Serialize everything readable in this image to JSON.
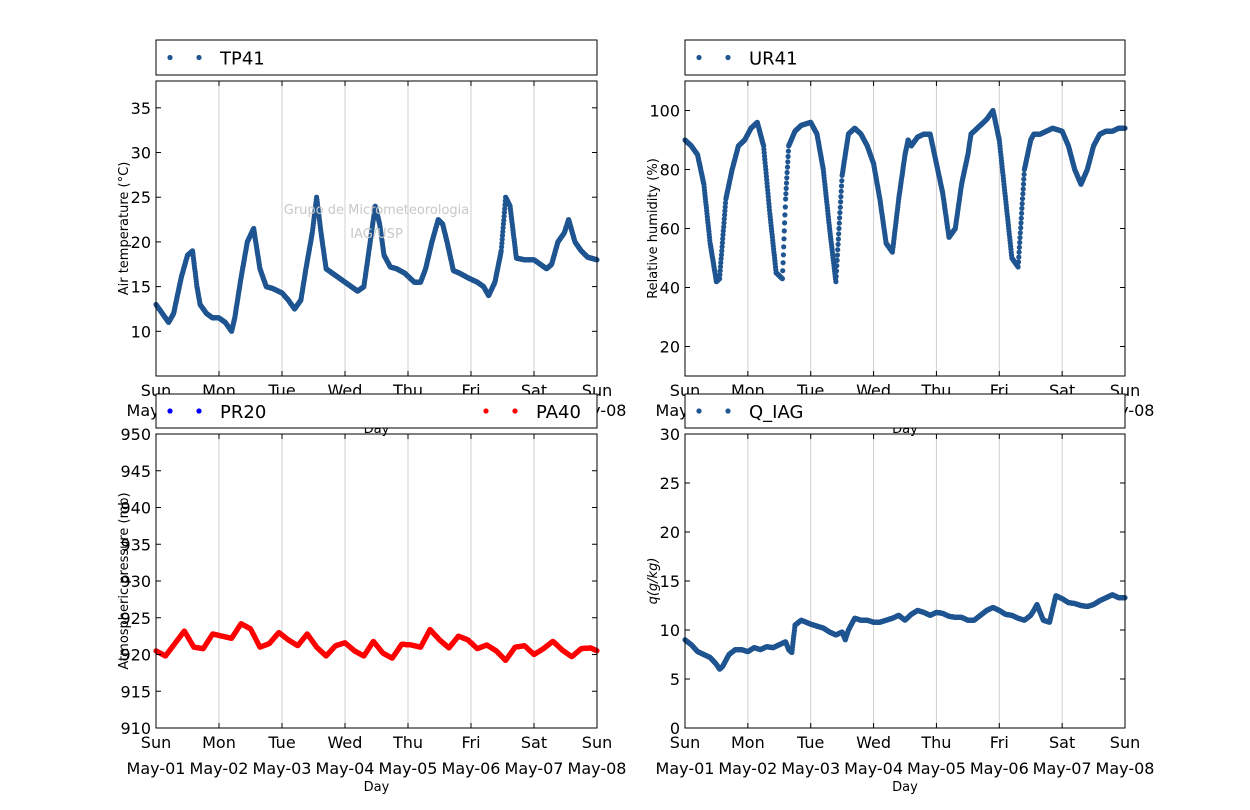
{
  "chart_data": [
    {
      "type": "scatter",
      "ylabel": "Air temperature (°C)",
      "xlabel": "Day",
      "ylim": [
        5,
        38
      ],
      "yticks": [
        10,
        15,
        20,
        25,
        30,
        35
      ],
      "xlim": [
        0,
        7
      ],
      "grid": "vertical",
      "legend_placement": "above",
      "watermark": [
        "Grupo de Micrometeorologia",
        "IAG/USP"
      ],
      "series": [
        {
          "name": "TP41",
          "color": "#1f5591",
          "x": [
            0,
            0.1,
            0.2,
            0.28,
            0.4,
            0.5,
            0.58,
            0.65,
            0.7,
            0.8,
            0.9,
            1.0,
            1.1,
            1.2,
            1.25,
            1.35,
            1.45,
            1.55,
            1.65,
            1.75,
            1.85,
            2.0,
            2.1,
            2.2,
            2.3,
            2.38,
            2.48,
            2.55,
            2.62,
            2.7,
            2.8,
            2.9,
            3.0,
            3.1,
            3.2,
            3.3,
            3.38,
            3.48,
            3.55,
            3.62,
            3.72,
            3.82,
            3.95,
            4.1,
            4.2,
            4.28,
            4.38,
            4.48,
            4.55,
            4.62,
            4.72,
            4.82,
            4.95,
            5.1,
            5.2,
            5.28,
            5.38,
            5.48,
            5.55,
            5.62,
            5.72,
            5.85,
            6.0,
            6.1,
            6.2,
            6.28,
            6.38,
            6.48,
            6.55,
            6.65,
            6.75,
            6.85,
            7.0
          ],
          "values": [
            13,
            12,
            11,
            12,
            16,
            18.5,
            19,
            15,
            13,
            12,
            11.5,
            11.5,
            11,
            10,
            11.5,
            16,
            20,
            21.5,
            17,
            15,
            14.8,
            14.3,
            13.5,
            12.5,
            13.5,
            17,
            21,
            25,
            21,
            17,
            16.5,
            16,
            15.5,
            15,
            14.5,
            15,
            19,
            24,
            22,
            18.5,
            17.2,
            17,
            16.5,
            15.5,
            15.5,
            17,
            20,
            22.5,
            22,
            20,
            16.8,
            16.5,
            16,
            15.5,
            15,
            14,
            15.5,
            19,
            25,
            24,
            18.2,
            18,
            18,
            17.5,
            17,
            17.5,
            20,
            21,
            22.5,
            20,
            19,
            18.3,
            18
          ]
        }
      ]
    },
    {
      "type": "scatter",
      "ylabel": "Relative humidity (%)",
      "xlabel": "Day",
      "ylim": [
        10,
        110
      ],
      "yticks": [
        20,
        40,
        60,
        80,
        100
      ],
      "xlim": [
        0,
        7
      ],
      "grid": "vertical",
      "legend_placement": "above",
      "series": [
        {
          "name": "UR41",
          "color": "#1f5591",
          "x": [
            0,
            0.1,
            0.2,
            0.3,
            0.4,
            0.5,
            0.55,
            0.65,
            0.75,
            0.85,
            0.95,
            1.05,
            1.15,
            1.25,
            1.35,
            1.45,
            1.55,
            1.6,
            1.65,
            1.75,
            1.85,
            2.0,
            2.1,
            2.2,
            2.3,
            2.4,
            2.5,
            2.55,
            2.6,
            2.65,
            2.7,
            2.8,
            2.9,
            3.0,
            3.1,
            3.2,
            3.3,
            3.4,
            3.5,
            3.55,
            3.6,
            3.7,
            3.8,
            3.9,
            4.0,
            4.1,
            4.2,
            4.3,
            4.4,
            4.5,
            4.55,
            4.6,
            4.7,
            4.8,
            4.9,
            5.0,
            5.1,
            5.2,
            5.3,
            5.4,
            5.5,
            5.55,
            5.65,
            5.75,
            5.85,
            6.0,
            6.1,
            6.2,
            6.3,
            6.4,
            6.5,
            6.6,
            6.7,
            6.8,
            6.9,
            7.0
          ],
          "values": [
            90,
            88,
            85,
            75,
            55,
            42,
            43,
            70,
            80,
            88,
            90,
            94,
            96,
            88,
            65,
            45,
            43,
            70,
            88,
            93,
            95,
            96,
            92,
            80,
            60,
            42,
            78,
            85,
            92,
            93,
            94,
            92,
            88,
            82,
            70,
            55,
            52,
            70,
            85,
            90,
            88,
            91,
            92,
            92,
            82,
            72,
            57,
            60,
            75,
            85,
            92,
            93,
            95,
            97,
            100,
            90,
            70,
            50,
            47,
            80,
            90,
            92,
            92,
            93,
            94,
            93,
            88,
            80,
            75,
            80,
            88,
            92,
            93,
            93,
            94,
            94
          ]
        }
      ]
    },
    {
      "type": "scatter",
      "ylabel": "Atmospheric pressure (mb)",
      "xlabel": "Day",
      "ylim": [
        910,
        950
      ],
      "yticks": [
        910,
        915,
        920,
        925,
        930,
        935,
        940,
        945,
        950
      ],
      "xlim": [
        0,
        7
      ],
      "grid": "vertical",
      "legend_placement": "above",
      "series": [
        {
          "name": "PR20",
          "color": "#0000ff",
          "x": [],
          "values": []
        },
        {
          "name": "PA40",
          "color": "#ff0000",
          "x": [
            0,
            0.15,
            0.3,
            0.45,
            0.6,
            0.75,
            0.9,
            1.05,
            1.2,
            1.35,
            1.5,
            1.65,
            1.8,
            1.95,
            2.1,
            2.25,
            2.4,
            2.55,
            2.7,
            2.85,
            3.0,
            3.15,
            3.3,
            3.45,
            3.6,
            3.75,
            3.9,
            4.05,
            4.2,
            4.35,
            4.5,
            4.65,
            4.8,
            4.95,
            5.1,
            5.25,
            5.4,
            5.55,
            5.7,
            5.85,
            6.0,
            6.15,
            6.3,
            6.45,
            6.6,
            6.75,
            6.9,
            7.0
          ],
          "values": [
            920.5,
            919.8,
            921.5,
            923.2,
            921,
            920.8,
            922.8,
            922.5,
            922.2,
            924.2,
            923.5,
            921,
            921.5,
            923,
            922,
            921.2,
            922.8,
            921,
            919.8,
            921.2,
            921.6,
            920.5,
            919.8,
            921.8,
            920.2,
            919.5,
            921.4,
            921.3,
            921,
            923.4,
            922,
            920.9,
            922.5,
            922,
            920.8,
            921.3,
            920.5,
            919.2,
            921,
            921.2,
            920,
            920.8,
            921.8,
            920.6,
            919.7,
            920.8,
            920.9,
            920.5
          ]
        }
      ]
    },
    {
      "type": "scatter",
      "ylabel": "q(g/kg)",
      "xlabel": "Day",
      "ylim": [
        0,
        30
      ],
      "yticks": [
        0,
        5,
        10,
        15,
        20,
        25,
        30
      ],
      "xlim": [
        0,
        7
      ],
      "grid": "vertical",
      "legend_placement": "above",
      "series": [
        {
          "name": "Q_IAG",
          "color": "#1f5591",
          "x": [
            0,
            0.1,
            0.2,
            0.3,
            0.4,
            0.5,
            0.55,
            0.6,
            0.7,
            0.8,
            0.9,
            1.0,
            1.1,
            1.2,
            1.3,
            1.4,
            1.5,
            1.6,
            1.65,
            1.7,
            1.75,
            1.85,
            2.0,
            2.1,
            2.2,
            2.3,
            2.4,
            2.5,
            2.55,
            2.6,
            2.7,
            2.8,
            2.9,
            3.0,
            3.1,
            3.2,
            3.3,
            3.4,
            3.5,
            3.6,
            3.7,
            3.8,
            3.9,
            4.0,
            4.1,
            4.2,
            4.3,
            4.4,
            4.5,
            4.6,
            4.7,
            4.8,
            4.9,
            5.0,
            5.1,
            5.2,
            5.3,
            5.4,
            5.5,
            5.55,
            5.6,
            5.7,
            5.8,
            5.9,
            6.0,
            6.1,
            6.2,
            6.3,
            6.4,
            6.5,
            6.6,
            6.7,
            6.8,
            6.9,
            7.0
          ],
          "values": [
            9,
            8.5,
            7.8,
            7.5,
            7.2,
            6.5,
            6,
            6.3,
            7.5,
            8,
            8,
            7.8,
            8.2,
            8,
            8.3,
            8.2,
            8.5,
            8.8,
            8,
            7.7,
            10.5,
            11,
            10.6,
            10.4,
            10.2,
            9.8,
            9.5,
            9.8,
            9,
            10,
            11.2,
            11,
            11,
            10.8,
            10.8,
            11,
            11.2,
            11.5,
            11,
            11.6,
            12,
            11.8,
            11.5,
            11.8,
            11.7,
            11.4,
            11.3,
            11.3,
            11,
            11,
            11.5,
            12,
            12.3,
            12,
            11.6,
            11.5,
            11.2,
            11,
            11.5,
            12,
            12.6,
            11,
            10.8,
            13.5,
            13.2,
            12.8,
            12.7,
            12.5,
            12.4,
            12.6,
            13,
            13.3,
            13.6,
            13.3,
            13.3
          ]
        }
      ]
    }
  ],
  "shared": {
    "xtick_days": [
      "Sun",
      "Mon",
      "Tue",
      "Wed",
      "Thu",
      "Fri",
      "Sat",
      "Sun"
    ],
    "xtick_dates": [
      "May-01",
      "May-02",
      "May-03",
      "May-04",
      "May-05",
      "May-06",
      "May-07",
      "May-08"
    ]
  }
}
